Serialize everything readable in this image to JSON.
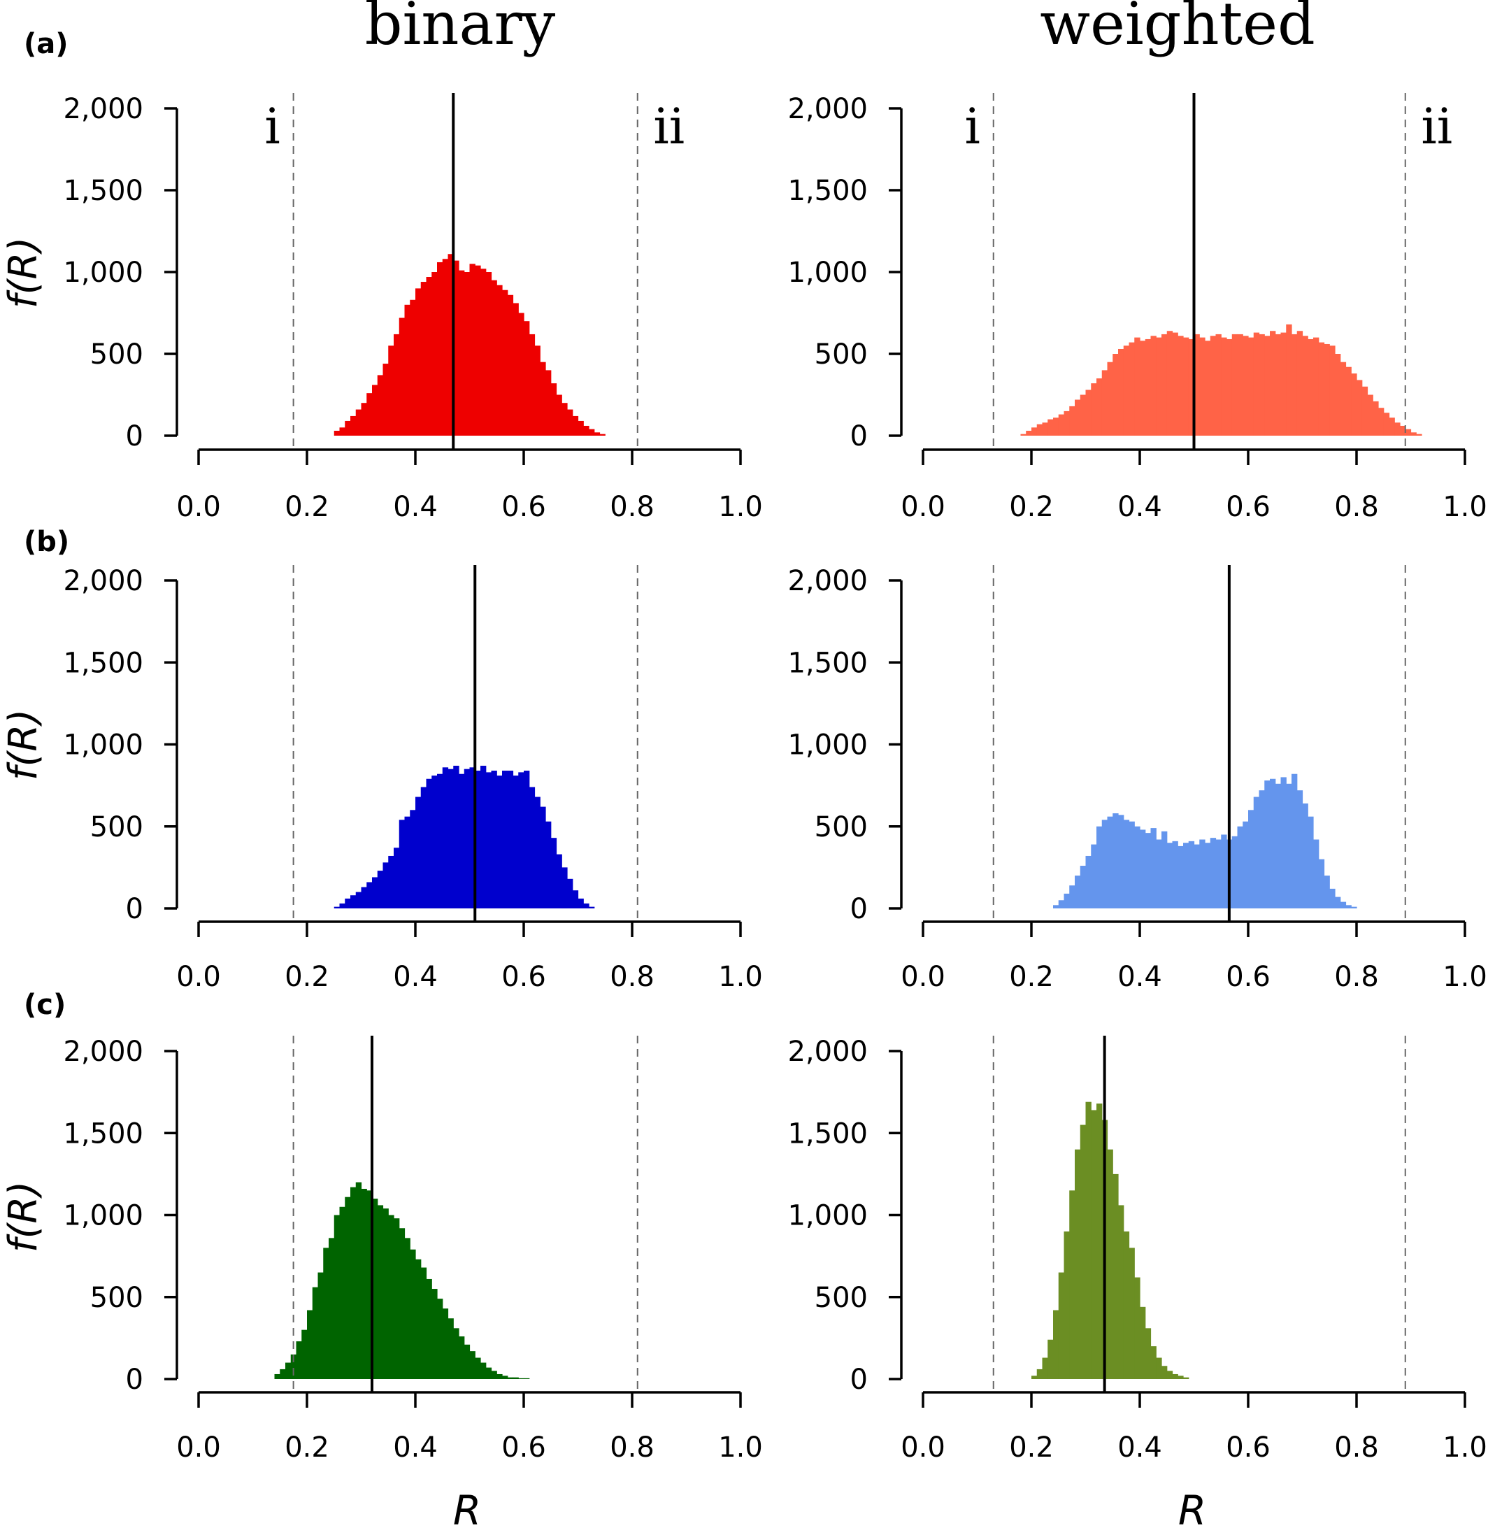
{
  "figure": {
    "column_titles": [
      "binary",
      "weighted"
    ],
    "panel_letters": [
      "(a)",
      "(b)",
      "(c)"
    ],
    "y_axis_label": "f(R)",
    "x_axis_label": "R",
    "marker_labels": [
      "i",
      "ii"
    ],
    "y_tick_labels": [
      "0",
      "500",
      "1,000",
      "1,500",
      "2,000"
    ],
    "x_tick_labels": [
      "0.0",
      "0.2",
      "0.4",
      "0.6",
      "0.8",
      "1.0"
    ]
  },
  "chart_data": [
    {
      "type": "histogram",
      "row": "(a)",
      "column": "binary",
      "color": "#ee0000",
      "xlim": [
        0,
        1
      ],
      "ylim": [
        0,
        2000
      ],
      "bin_width": 0.01,
      "x_start": 0.25,
      "values": [
        30,
        50,
        90,
        120,
        160,
        200,
        260,
        310,
        370,
        440,
        550,
        620,
        720,
        800,
        830,
        900,
        940,
        970,
        1000,
        1060,
        1080,
        1110,
        1070,
        1010,
        1000,
        1050,
        1040,
        1020,
        1000,
        950,
        920,
        890,
        860,
        810,
        750,
        700,
        620,
        550,
        450,
        400,
        320,
        250,
        200,
        160,
        120,
        90,
        60,
        40,
        20,
        10
      ],
      "solid_line_x": 0.47,
      "dashed_lines_x": [
        0.175,
        0.81
      ],
      "markers": [
        "i",
        "ii"
      ]
    },
    {
      "type": "histogram",
      "row": "(a)",
      "column": "weighted",
      "color": "#ff6347",
      "xlim": [
        0,
        1
      ],
      "ylim": [
        0,
        2000
      ],
      "bin_width": 0.01,
      "x_start": 0.18,
      "values": [
        10,
        30,
        50,
        70,
        80,
        100,
        110,
        130,
        150,
        180,
        220,
        250,
        280,
        320,
        350,
        400,
        450,
        500,
        530,
        550,
        570,
        600,
        580,
        590,
        610,
        600,
        620,
        640,
        630,
        610,
        600,
        590,
        620,
        600,
        580,
        610,
        620,
        600,
        590,
        620,
        620,
        610,
        600,
        630,
        620,
        610,
        640,
        620,
        630,
        680,
        620,
        640,
        610,
        590,
        600,
        570,
        560,
        550,
        500,
        450,
        420,
        380,
        340,
        300,
        250,
        210,
        170,
        140,
        110,
        80,
        60,
        40,
        20,
        10
      ],
      "solid_line_x": 0.5,
      "dashed_lines_x": [
        0.13,
        0.89
      ],
      "markers": [
        "i",
        "ii"
      ]
    },
    {
      "type": "histogram",
      "row": "(b)",
      "column": "binary",
      "color": "#0000cd",
      "xlim": [
        0,
        1
      ],
      "ylim": [
        0,
        2000
      ],
      "bin_width": 0.01,
      "x_start": 0.25,
      "values": [
        10,
        30,
        60,
        80,
        100,
        130,
        160,
        190,
        230,
        280,
        320,
        370,
        540,
        560,
        600,
        680,
        740,
        790,
        810,
        820,
        860,
        850,
        870,
        820,
        850,
        860,
        840,
        870,
        830,
        840,
        810,
        840,
        840,
        810,
        830,
        840,
        740,
        680,
        620,
        530,
        430,
        330,
        250,
        180,
        110,
        60,
        30,
        10
      ],
      "solid_line_x": 0.51,
      "dashed_lines_x": [
        0.175,
        0.81
      ],
      "markers": []
    },
    {
      "type": "histogram",
      "row": "(b)",
      "column": "weighted",
      "color": "#6495ed",
      "xlim": [
        0,
        1
      ],
      "ylim": [
        0,
        2000
      ],
      "bin_width": 0.01,
      "x_start": 0.24,
      "values": [
        20,
        50,
        90,
        140,
        200,
        260,
        320,
        390,
        500,
        540,
        560,
        580,
        570,
        540,
        530,
        500,
        480,
        460,
        490,
        420,
        470,
        400,
        410,
        380,
        400,
        410,
        390,
        420,
        400,
        430,
        420,
        450,
        420,
        440,
        500,
        530,
        600,
        680,
        720,
        780,
        790,
        760,
        800,
        760,
        820,
        720,
        640,
        560,
        420,
        300,
        200,
        120,
        70,
        40,
        20,
        10
      ],
      "solid_line_x": 0.565,
      "dashed_lines_x": [
        0.13,
        0.89
      ],
      "markers": []
    },
    {
      "type": "histogram",
      "row": "(c)",
      "column": "binary",
      "color": "#006400",
      "xlim": [
        0,
        1
      ],
      "ylim": [
        0,
        2000
      ],
      "bin_width": 0.01,
      "x_start": 0.14,
      "values": [
        30,
        60,
        100,
        150,
        230,
        300,
        420,
        560,
        650,
        800,
        860,
        1000,
        1050,
        1110,
        1170,
        1200,
        1160,
        1150,
        1100,
        1060,
        1040,
        1000,
        980,
        920,
        860,
        790,
        730,
        680,
        610,
        550,
        490,
        430,
        370,
        310,
        260,
        210,
        170,
        130,
        100,
        70,
        50,
        30,
        20,
        10,
        10,
        5,
        5
      ],
      "solid_line_x": 0.32,
      "dashed_lines_x": [
        0.175,
        0.81
      ],
      "markers": []
    },
    {
      "type": "histogram",
      "row": "(c)",
      "column": "weighted",
      "color": "#6b8e23",
      "xlim": [
        0,
        1
      ],
      "ylim": [
        0,
        2000
      ],
      "bin_width": 0.01,
      "x_start": 0.2,
      "values": [
        20,
        60,
        130,
        240,
        420,
        650,
        900,
        1150,
        1400,
        1550,
        1690,
        1640,
        1680,
        1580,
        1400,
        1250,
        1060,
        900,
        800,
        620,
        440,
        310,
        200,
        130,
        80,
        50,
        30,
        20,
        10
      ],
      "solid_line_x": 0.335,
      "dashed_lines_x": [
        0.13,
        0.89
      ],
      "markers": []
    }
  ]
}
